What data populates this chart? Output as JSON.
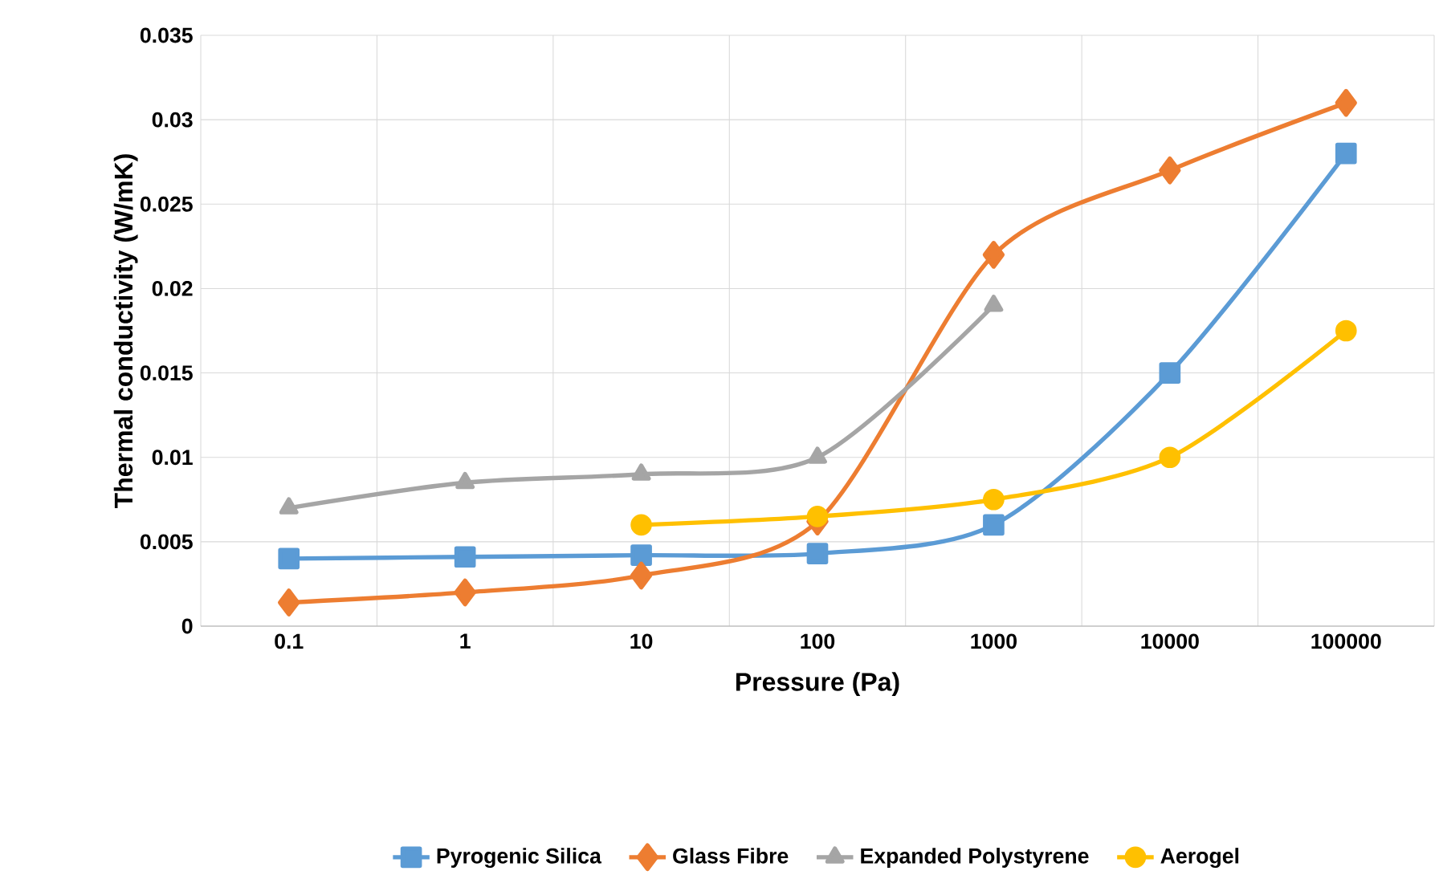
{
  "chart_data": {
    "type": "line",
    "xlabel": "Pressure (Pa)",
    "ylabel": "Thermal conductivity (W/mK)",
    "categories": [
      "0.1",
      "1",
      "10",
      "100",
      "1000",
      "10000",
      "100000"
    ],
    "ylim": [
      0,
      0.035
    ],
    "yticks": [
      0,
      0.005,
      0.01,
      0.015,
      0.02,
      0.025,
      0.03,
      0.035
    ],
    "grid": true,
    "legend": "bottom",
    "series": [
      {
        "name": "Pyrogenic Silica",
        "color": "#5b9bd5",
        "marker": "square",
        "values": [
          0.004,
          0.0041,
          0.0042,
          0.0043,
          0.006,
          0.015,
          0.028
        ]
      },
      {
        "name": "Glass Fibre",
        "color": "#ed7d31",
        "marker": "diamond",
        "values": [
          0.0014,
          0.002,
          0.003,
          0.0062,
          0.022,
          0.027,
          0.031
        ]
      },
      {
        "name": "Expanded Polystyrene",
        "color": "#a5a5a5",
        "marker": "triangle",
        "values": [
          0.007,
          0.0085,
          0.009,
          0.01,
          0.019,
          null,
          null
        ]
      },
      {
        "name": "Aerogel",
        "color": "#ffc000",
        "marker": "circle",
        "values": [
          null,
          null,
          0.006,
          0.0065,
          0.0075,
          0.01,
          0.0175
        ]
      }
    ]
  }
}
